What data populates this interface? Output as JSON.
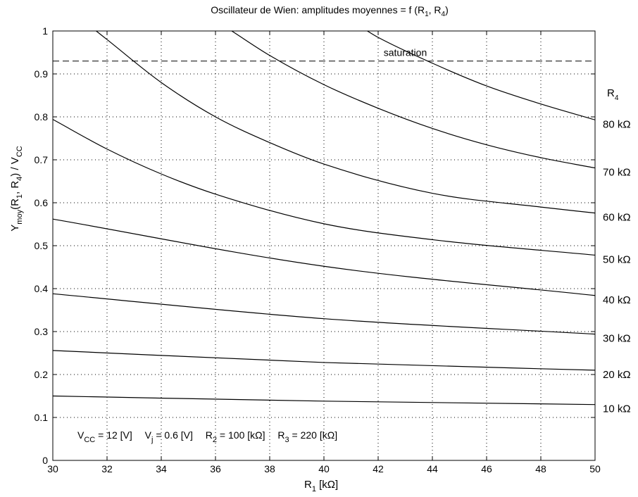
{
  "chart_data": {
    "type": "line",
    "title": {
      "main": "Oscillateur de Wien: amplitudes moyennes = f (R",
      "sub1": "1",
      "mid": ", R",
      "sub2": "4",
      "end": ")"
    },
    "xlabel": {
      "main": "R",
      "sub": "1",
      "unit": " [kΩ]"
    },
    "ylabel": {
      "p1": "Y",
      "sub1": "moy",
      "p2": "(R",
      "sub2": "1",
      "p3": ", R",
      "sub3": "4",
      "p4": ") / V",
      "sub4": "CC"
    },
    "xlim": [
      30,
      50
    ],
    "ylim": [
      0,
      1
    ],
    "xticks": [
      30,
      32,
      34,
      36,
      38,
      40,
      42,
      44,
      46,
      48,
      50
    ],
    "yticks": [
      0,
      0.1,
      0.2,
      0.3,
      0.4,
      0.5,
      0.6,
      0.7,
      0.8,
      0.9,
      1
    ],
    "grid": true,
    "saturation": {
      "value": 0.93,
      "label": "saturation"
    },
    "legend_title": {
      "main": "R",
      "sub": "4"
    },
    "series": [
      {
        "name": "10 kΩ",
        "values": [
          [
            30,
            0.15
          ],
          [
            40,
            0.138
          ],
          [
            50,
            0.13
          ]
        ]
      },
      {
        "name": "20 kΩ",
        "values": [
          [
            30,
            0.256
          ],
          [
            40,
            0.228
          ],
          [
            50,
            0.21
          ]
        ]
      },
      {
        "name": "30 kΩ",
        "values": [
          [
            30,
            0.388
          ],
          [
            40,
            0.33
          ],
          [
            50,
            0.294
          ]
        ]
      },
      {
        "name": "40 kΩ",
        "values": [
          [
            30,
            0.562
          ],
          [
            40,
            0.452
          ],
          [
            50,
            0.384
          ]
        ]
      },
      {
        "name": "50 kΩ",
        "values": [
          [
            30,
            0.794
          ],
          [
            32,
            0.725
          ],
          [
            34,
            0.667
          ],
          [
            36,
            0.62
          ],
          [
            40,
            0.551
          ],
          [
            44,
            0.514
          ],
          [
            50,
            0.478
          ]
        ]
      },
      {
        "name": "60 kΩ",
        "values": [
          [
            31.6,
            1.0
          ],
          [
            32,
            0.98
          ],
          [
            34,
            0.88
          ],
          [
            36,
            0.8
          ],
          [
            38,
            0.74
          ],
          [
            40,
            0.69
          ],
          [
            44,
            0.622
          ],
          [
            48,
            0.59
          ],
          [
            50,
            0.576
          ]
        ]
      },
      {
        "name": "70 kΩ",
        "values": [
          [
            36.6,
            1.0
          ],
          [
            38,
            0.943
          ],
          [
            40,
            0.875
          ],
          [
            42,
            0.82
          ],
          [
            44,
            0.773
          ],
          [
            46,
            0.735
          ],
          [
            48,
            0.705
          ],
          [
            50,
            0.681
          ]
        ]
      },
      {
        "name": "80 kΩ",
        "values": [
          [
            41.6,
            1.0
          ],
          [
            42,
            0.985
          ],
          [
            44,
            0.925
          ],
          [
            46,
            0.872
          ],
          [
            48,
            0.83
          ],
          [
            50,
            0.793
          ]
        ]
      }
    ],
    "annotation": [
      {
        "main": "V",
        "sub": "CC",
        "rest": " = 12 [V]"
      },
      {
        "main": "V",
        "sub": "j",
        "rest": " = 0.6 [V]"
      },
      {
        "main": "R",
        "sub": "2",
        "rest": " = 100 [kΩ]"
      },
      {
        "main": "R",
        "sub": "3",
        "rest": " = 220 [kΩ]"
      }
    ]
  }
}
